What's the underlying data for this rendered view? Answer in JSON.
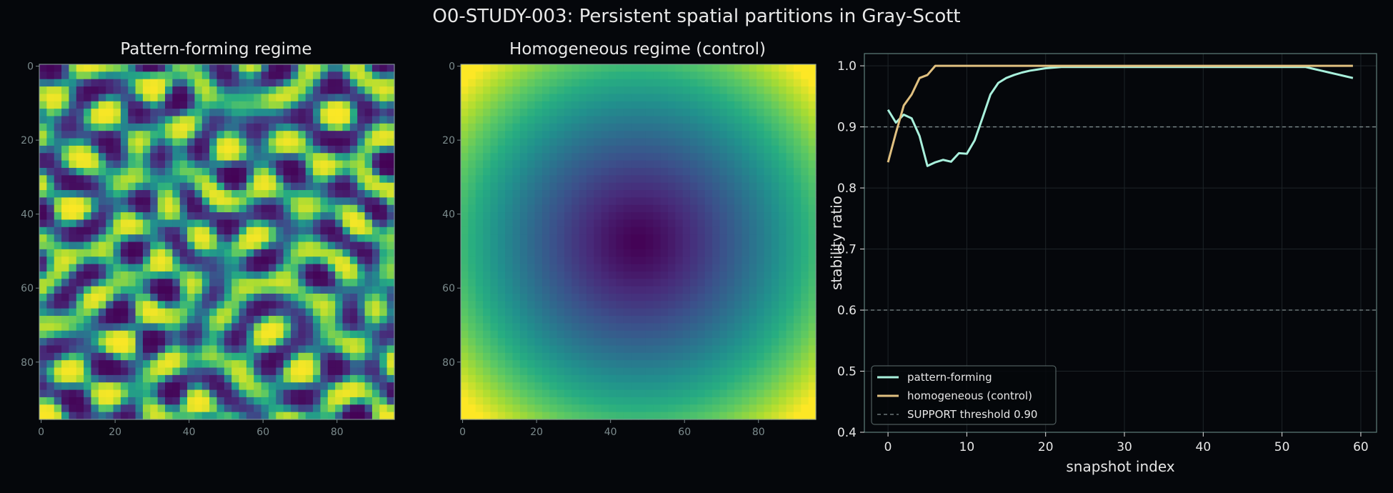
{
  "figure": {
    "suptitle": "O0-STUDY-003: Persistent spatial partitions in Gray-Scott",
    "colors": {
      "background": "#05070b",
      "text": "#e6e6e6",
      "muted_tick": "#7b8a8c",
      "panel_edge": "#5f7f7b",
      "grid": "#1d2428",
      "threshold": "#7f8c8d"
    }
  },
  "chart_data": [
    {
      "type": "heatmap",
      "title": "Pattern-forming regime",
      "colormap": "viridis",
      "grid_size": [
        96,
        96
      ],
      "xlim": [
        0,
        95
      ],
      "ylim": [
        0,
        95
      ],
      "y_inverted": true,
      "xticks": [
        0,
        20,
        40,
        60,
        80
      ],
      "yticks": [
        0,
        20,
        40,
        60,
        80
      ],
      "content": "labyrinthine Turing stripe pattern, values 0-1"
    },
    {
      "type": "heatmap",
      "title": "Homogeneous regime (control)",
      "colormap": "viridis",
      "grid_size": [
        96,
        96
      ],
      "xlim": [
        0,
        95
      ],
      "ylim": [
        0,
        95
      ],
      "y_inverted": true,
      "xticks": [
        0,
        20,
        40,
        60,
        80
      ],
      "yticks": [
        0,
        20,
        40,
        60,
        80
      ],
      "content": "radial gradient, minimum at center (47,47), maximum at corners"
    },
    {
      "type": "line",
      "title": "",
      "xlabel": "snapshot index",
      "ylabel": "stability ratio",
      "xlim": [
        -3,
        62
      ],
      "ylim": [
        0.4,
        1.02
      ],
      "xticks": [
        0,
        10,
        20,
        30,
        40,
        50,
        60
      ],
      "yticks": [
        0.4,
        0.5,
        0.6,
        0.7,
        0.8,
        0.9,
        1.0
      ],
      "grid": true,
      "legend_position": "lower-left",
      "x": [
        0,
        1,
        2,
        3,
        4,
        5,
        6,
        7,
        8,
        9,
        10,
        11,
        12,
        13,
        14,
        15,
        16,
        17,
        18,
        19,
        20,
        21,
        22,
        23,
        24,
        25,
        26,
        27,
        28,
        29,
        30,
        31,
        32,
        33,
        34,
        35,
        36,
        37,
        38,
        39,
        40,
        41,
        42,
        43,
        44,
        45,
        46,
        47,
        48,
        49,
        50,
        51,
        52,
        53,
        54,
        55,
        56,
        57,
        58,
        59
      ],
      "series": [
        {
          "name": "pattern-forming",
          "color": "#a8f0dc",
          "values": [
            0.928,
            0.907,
            0.92,
            0.914,
            0.885,
            0.836,
            0.842,
            0.846,
            0.843,
            0.857,
            0.856,
            0.878,
            0.915,
            0.953,
            0.972,
            0.98,
            0.985,
            0.989,
            0.992,
            0.994,
            0.996,
            0.997,
            0.998,
            0.998,
            0.998,
            0.998,
            0.998,
            0.998,
            0.998,
            0.998,
            0.998,
            0.998,
            0.998,
            0.998,
            0.998,
            0.998,
            0.998,
            0.998,
            0.998,
            0.998,
            0.998,
            0.998,
            0.998,
            0.998,
            0.998,
            0.998,
            0.998,
            0.998,
            0.998,
            0.998,
            0.998,
            0.998,
            0.998,
            0.998,
            0.995,
            0.992,
            0.989,
            0.986,
            0.983,
            0.98
          ]
        },
        {
          "name": "homogeneous (control)",
          "color": "#e0c080",
          "values": [
            0.842,
            0.89,
            0.935,
            0.953,
            0.98,
            0.985,
            1.0,
            1.0,
            1.0,
            1.0,
            1.0,
            1.0,
            1.0,
            1.0,
            1.0,
            1.0,
            1.0,
            1.0,
            1.0,
            1.0,
            1.0,
            1.0,
            1.0,
            1.0,
            1.0,
            1.0,
            1.0,
            1.0,
            1.0,
            1.0,
            1.0,
            1.0,
            1.0,
            1.0,
            1.0,
            1.0,
            1.0,
            1.0,
            1.0,
            1.0,
            1.0,
            1.0,
            1.0,
            1.0,
            1.0,
            1.0,
            1.0,
            1.0,
            1.0,
            1.0,
            1.0,
            1.0,
            1.0,
            1.0,
            1.0,
            1.0,
            1.0,
            1.0,
            1.0,
            1.0
          ]
        }
      ],
      "hlines": [
        {
          "y": 0.9,
          "label": "SUPPORT threshold 0.90",
          "style": "dashed"
        },
        {
          "y": 0.6,
          "label": "",
          "style": "dashed"
        }
      ]
    }
  ]
}
